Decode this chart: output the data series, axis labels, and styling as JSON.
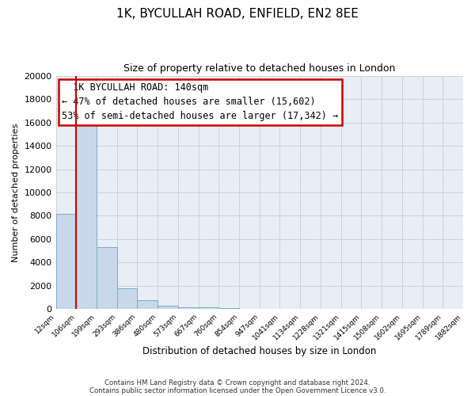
{
  "title": "1K, BYCULLAH ROAD, ENFIELD, EN2 8EE",
  "subtitle": "Size of property relative to detached houses in London",
  "xlabel": "Distribution of detached houses by size in London",
  "ylabel": "Number of detached properties",
  "bar_values": [
    8200,
    16600,
    5300,
    1800,
    750,
    300,
    175,
    150,
    100,
    0,
    0,
    0,
    0,
    0,
    0,
    0,
    0,
    0,
    0,
    0
  ],
  "bin_labels": [
    "12sqm",
    "106sqm",
    "199sqm",
    "293sqm",
    "386sqm",
    "480sqm",
    "573sqm",
    "667sqm",
    "760sqm",
    "854sqm",
    "947sqm",
    "1041sqm",
    "1134sqm",
    "1228sqm",
    "1321sqm",
    "1415sqm",
    "1508sqm",
    "1602sqm",
    "1695sqm",
    "1789sqm",
    "1882sqm"
  ],
  "bar_color": "#c8d8ea",
  "bar_edge_color": "#7aabcc",
  "property_line_color": "#cc0000",
  "ylim": [
    0,
    20000
  ],
  "yticks": [
    0,
    2000,
    4000,
    6000,
    8000,
    10000,
    12000,
    14000,
    16000,
    18000,
    20000
  ],
  "annotation_title": "1K BYCULLAH ROAD: 140sqm",
  "annotation_line1": "← 47% of detached houses are smaller (15,602)",
  "annotation_line2": "53% of semi-detached houses are larger (17,342) →",
  "footnote1": "Contains HM Land Registry data © Crown copyright and database right 2024.",
  "footnote2": "Contains public sector information licensed under the Open Government Licence v3.0.",
  "bg_color": "#ffffff",
  "plot_bg_color": "#e8eef5"
}
